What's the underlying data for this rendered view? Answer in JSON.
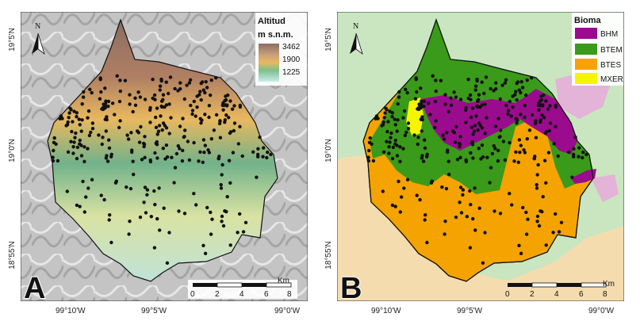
{
  "panels": {
    "a": {
      "letter": "A",
      "legend_title": "Altitud",
      "legend_unit": "m s.n.m.",
      "elevation_labels": [
        "3462",
        "1900",
        "1225"
      ],
      "scalebar_unit": "Km",
      "scalebar_ticks": [
        "0",
        "2",
        "4",
        "6",
        "8"
      ],
      "north_label": "N"
    },
    "b": {
      "letter": "B",
      "legend_title": "Bioma",
      "biomes": [
        {
          "code": "BHM",
          "color": "#9a0b8e"
        },
        {
          "code": "BTEM",
          "color": "#3a9a1a"
        },
        {
          "code": "BTES",
          "color": "#f5a300"
        },
        {
          "code": "MXER",
          "color": "#f5f500"
        }
      ],
      "scalebar_unit": "Km",
      "scalebar_ticks": [
        "0",
        "2",
        "4",
        "6",
        "8"
      ],
      "north_label": "N"
    }
  },
  "axes": {
    "lon_ticks": [
      "99°10'W",
      "99°5'W",
      "99°0'W"
    ],
    "lat_ticks": [
      "19°5'N",
      "19°0'N",
      "18°55'N"
    ]
  },
  "colors": {
    "outside_green": "#c9e6c0",
    "outside_sand": "#f5dcae",
    "outside_pink": "#e3b3d8",
    "hillshade": "#bdbdbd"
  }
}
